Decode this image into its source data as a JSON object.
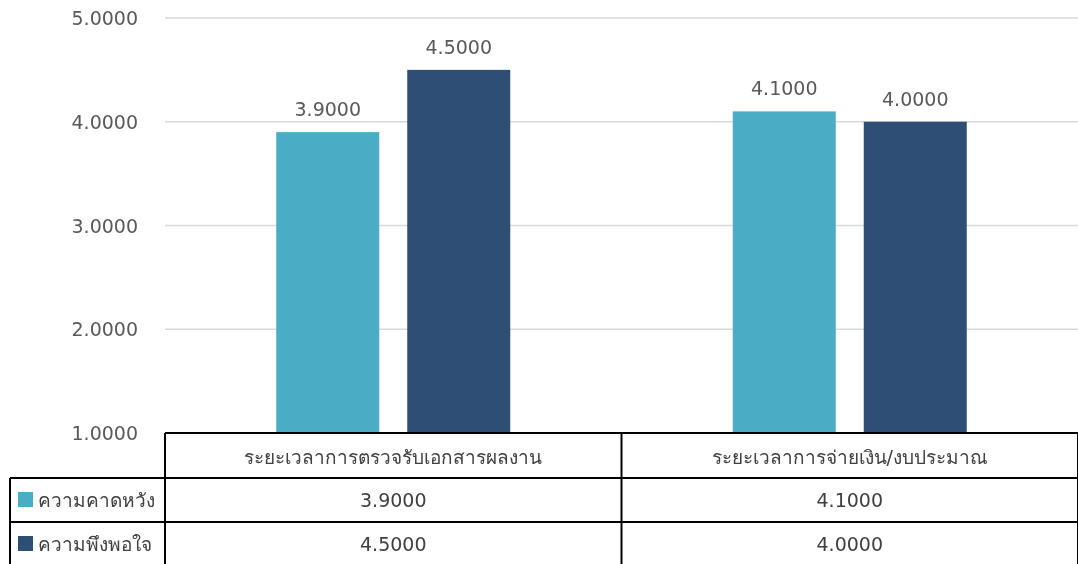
{
  "chart_data": {
    "type": "bar",
    "categories": [
      "ระยะเวลาการตรวจรับเอกสารผลงาน",
      "ระยะเวลาการจ่ายเงิน/งบประมาณ"
    ],
    "series": [
      {
        "name": "ความคาดหวัง",
        "color": "#4bacc6",
        "values": [
          3.9,
          4.1
        ],
        "value_labels": [
          "3.9000",
          "4.1000"
        ]
      },
      {
        "name": "ความพึงพอใจ",
        "color": "#2e4e75",
        "values": [
          4.5,
          4.0
        ],
        "value_labels": [
          "4.5000",
          "4.0000"
        ]
      }
    ],
    "ylim": [
      1,
      5
    ],
    "yticks": [
      {
        "value": 1,
        "label": "1.0000"
      },
      {
        "value": 2,
        "label": "2.0000"
      },
      {
        "value": 3,
        "label": "3.0000"
      },
      {
        "value": 4,
        "label": "4.0000"
      },
      {
        "value": 5,
        "label": "5.0000"
      }
    ],
    "grid": "y",
    "legend": "bottom"
  }
}
